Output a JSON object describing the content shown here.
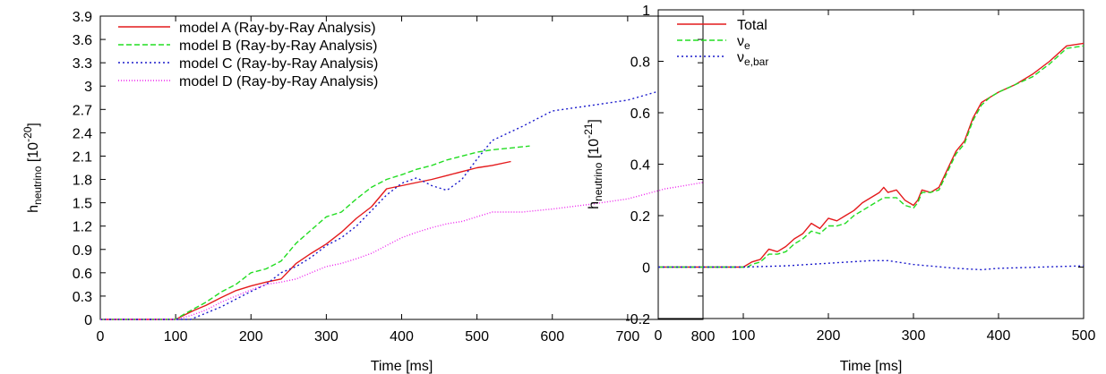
{
  "chart_data": [
    {
      "type": "line",
      "xlabel": "Time [ms]",
      "ylabel": {
        "base": "h",
        "sub": "neutrino",
        "unit_pre": " [10",
        "unit_sup": "-20",
        "unit_post": "]"
      },
      "xlim": [
        0,
        800
      ],
      "ylim": [
        0,
        3.9
      ],
      "xticks": [
        "0",
        "100",
        "200",
        "300",
        "400",
        "500",
        "600",
        "700",
        "800"
      ],
      "yticks": [
        "0",
        "0.3",
        "0.6",
        "0.9",
        "1.2",
        "1.5",
        "1.8",
        "2.1",
        "2.4",
        "2.7",
        "3",
        "3.3",
        "3.6",
        "3.9"
      ],
      "legend_position": "top-left",
      "series": [
        {
          "name": "model A (Ray-by-Ray Analysis)",
          "color": "#e41a1c",
          "dash": "solid",
          "x": [
            0,
            100,
            110,
            125,
            140,
            160,
            180,
            200,
            220,
            240,
            260,
            280,
            300,
            320,
            340,
            360,
            380,
            400,
            420,
            440,
            460,
            480,
            500,
            520,
            545
          ],
          "y": [
            0,
            0,
            0.05,
            0.12,
            0.18,
            0.28,
            0.37,
            0.43,
            0.48,
            0.52,
            0.72,
            0.85,
            0.97,
            1.12,
            1.3,
            1.45,
            1.68,
            1.72,
            1.76,
            1.8,
            1.85,
            1.9,
            1.95,
            1.98,
            2.03
          ]
        },
        {
          "name": "model B (Ray-by-Ray Analysis)",
          "color": "#22dd22",
          "dash": "6,3",
          "x": [
            0,
            100,
            110,
            125,
            140,
            160,
            180,
            200,
            220,
            240,
            260,
            280,
            300,
            320,
            340,
            360,
            380,
            400,
            420,
            440,
            460,
            480,
            500,
            520,
            540,
            570
          ],
          "y": [
            0,
            0,
            0.06,
            0.14,
            0.22,
            0.35,
            0.45,
            0.6,
            0.65,
            0.75,
            0.98,
            1.15,
            1.32,
            1.38,
            1.55,
            1.7,
            1.8,
            1.86,
            1.93,
            1.98,
            2.05,
            2.1,
            2.15,
            2.18,
            2.2,
            2.23
          ]
        },
        {
          "name": "model C (Ray-by-Ray Analysis)",
          "color": "#1a1acc",
          "dash": "2,3",
          "x": [
            0,
            100,
            120,
            140,
            160,
            180,
            200,
            220,
            240,
            260,
            280,
            300,
            320,
            340,
            360,
            380,
            400,
            420,
            440,
            460,
            480,
            500,
            520,
            560,
            600,
            650,
            700,
            740
          ],
          "y": [
            0,
            0,
            0.0,
            0.08,
            0.16,
            0.26,
            0.36,
            0.45,
            0.6,
            0.68,
            0.8,
            0.95,
            1.05,
            1.2,
            1.4,
            1.6,
            1.75,
            1.82,
            1.72,
            1.66,
            1.8,
            2.06,
            2.3,
            2.48,
            2.68,
            2.75,
            2.82,
            2.93
          ]
        },
        {
          "name": "model D (Ray-by-Ray Analysis)",
          "color": "#ee22ee",
          "dash": "1,2",
          "x": [
            0,
            100,
            120,
            140,
            160,
            180,
            200,
            220,
            240,
            260,
            280,
            300,
            320,
            340,
            360,
            380,
            400,
            420,
            440,
            460,
            480,
            500,
            520,
            540,
            560,
            600,
            650,
            700,
            750,
            800
          ],
          "y": [
            0,
            0,
            0.05,
            0.12,
            0.22,
            0.3,
            0.38,
            0.45,
            0.48,
            0.52,
            0.6,
            0.68,
            0.72,
            0.78,
            0.85,
            0.95,
            1.05,
            1.12,
            1.18,
            1.23,
            1.26,
            1.32,
            1.38,
            1.38,
            1.38,
            1.42,
            1.48,
            1.55,
            1.68,
            1.76
          ]
        }
      ]
    },
    {
      "type": "line",
      "xlabel": "Time [ms]",
      "ylabel": {
        "base": "h",
        "sub": "neutrino",
        "unit_pre": " [10",
        "unit_sup": "-21",
        "unit_post": "]"
      },
      "xlim": [
        0,
        500
      ],
      "ylim": [
        -0.2,
        1
      ],
      "xticks": [
        "0",
        "100",
        "200",
        "300",
        "400",
        "500"
      ],
      "yticks": [
        "-0.2",
        "0",
        "0.2",
        "0.4",
        "0.6",
        "0.8",
        "1"
      ],
      "legend_position": "top-left",
      "series": [
        {
          "name": "Total",
          "name_sub": "",
          "color": "#e41a1c",
          "dash": "solid",
          "x": [
            0,
            100,
            105,
            110,
            120,
            130,
            140,
            150,
            160,
            170,
            180,
            190,
            200,
            210,
            220,
            230,
            240,
            250,
            260,
            265,
            270,
            280,
            290,
            300,
            305,
            310,
            320,
            330,
            340,
            350,
            360,
            370,
            380,
            390,
            400,
            420,
            440,
            460,
            480,
            500
          ],
          "y": [
            0,
            0,
            0.01,
            0.02,
            0.03,
            0.07,
            0.06,
            0.08,
            0.11,
            0.13,
            0.17,
            0.15,
            0.19,
            0.18,
            0.2,
            0.22,
            0.25,
            0.27,
            0.29,
            0.31,
            0.29,
            0.3,
            0.26,
            0.24,
            0.26,
            0.3,
            0.29,
            0.31,
            0.38,
            0.45,
            0.49,
            0.58,
            0.64,
            0.66,
            0.68,
            0.71,
            0.75,
            0.8,
            0.86,
            0.87
          ]
        },
        {
          "name": "ν",
          "name_sub": "e",
          "color": "#22dd22",
          "dash": "6,3",
          "x": [
            0,
            100,
            105,
            110,
            120,
            130,
            140,
            150,
            160,
            170,
            180,
            190,
            200,
            210,
            220,
            230,
            240,
            250,
            260,
            265,
            270,
            280,
            290,
            300,
            305,
            310,
            320,
            330,
            340,
            350,
            360,
            370,
            380,
            390,
            400,
            420,
            440,
            460,
            480,
            500
          ],
          "y": [
            0,
            0,
            0.0,
            0.01,
            0.02,
            0.05,
            0.05,
            0.06,
            0.09,
            0.11,
            0.14,
            0.13,
            0.16,
            0.16,
            0.17,
            0.2,
            0.22,
            0.24,
            0.26,
            0.27,
            0.27,
            0.27,
            0.24,
            0.23,
            0.25,
            0.29,
            0.29,
            0.3,
            0.37,
            0.44,
            0.48,
            0.57,
            0.63,
            0.66,
            0.68,
            0.71,
            0.74,
            0.79,
            0.85,
            0.86
          ]
        },
        {
          "name": "ν",
          "name_sub": "e,bar",
          "color": "#1a1acc",
          "dash": "2,3",
          "x": [
            0,
            100,
            150,
            200,
            250,
            270,
            300,
            350,
            380,
            400,
            450,
            500
          ],
          "y": [
            0,
            0,
            0.005,
            0.015,
            0.025,
            0.025,
            0.01,
            -0.005,
            -0.01,
            -0.005,
            0.0,
            0.005
          ]
        }
      ]
    }
  ]
}
